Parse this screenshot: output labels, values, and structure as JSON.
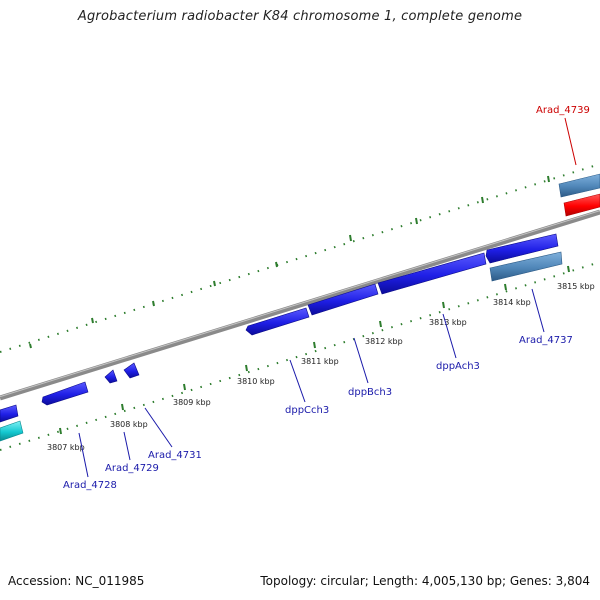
{
  "title": "Agrobacterium radiobacter K84 chromosome 1, complete genome",
  "footer": {
    "accession": "Accession: NC_011985",
    "summary": "Topology: circular; Length: 4,005,130 bp; Genes: 3,804"
  },
  "colors": {
    "backbone": "#8a8a8a",
    "ticks": "#2e7d2e",
    "gene_blue": "#1f1fe6",
    "gene_steel": "#4f86b8",
    "gene_red": "#ff0000",
    "gene_cyan": "#14c8d0",
    "label_blue": "#1a1aaa",
    "label_red": "#cc0000"
  },
  "scale_labels": [
    {
      "text": "3807 kbp"
    },
    {
      "text": "3808 kbp"
    },
    {
      "text": "3809 kbp"
    },
    {
      "text": "3810 kbp"
    },
    {
      "text": "3811 kbp"
    },
    {
      "text": "3812 kbp"
    },
    {
      "text": "3813 kbp"
    },
    {
      "text": "3814 kbp"
    },
    {
      "text": "3815 kbp"
    }
  ],
  "gene_labels": [
    {
      "text": "Arad_4728",
      "color": "#1a1aaa"
    },
    {
      "text": "Arad_4729",
      "color": "#1a1aaa"
    },
    {
      "text": "Arad_4731",
      "color": "#1a1aaa"
    },
    {
      "text": "dppCch3",
      "color": "#1a1aaa"
    },
    {
      "text": "dppBch3",
      "color": "#1a1aaa"
    },
    {
      "text": "dppAch3",
      "color": "#1a1aaa"
    },
    {
      "text": "Arad_4737",
      "color": "#1a1aaa"
    },
    {
      "text": "Arad_4739",
      "color": "#cc0000"
    }
  ]
}
